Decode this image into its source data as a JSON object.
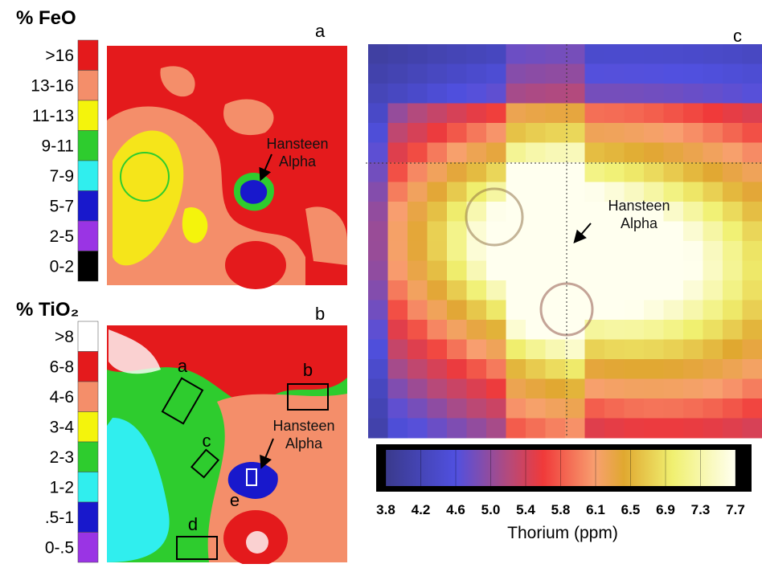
{
  "panels": [
    {
      "label": "a",
      "legend_title": "% FeO",
      "classes": [
        {
          "label": ">16",
          "color": "#e41a1c"
        },
        {
          "label": "13-16",
          "color": "#f48e6a"
        },
        {
          "label": "11-13",
          "color": "#f4f40c"
        },
        {
          "label": "9-11",
          "color": "#2ecc2e"
        },
        {
          "label": "7-9",
          "color": "#30eeee"
        },
        {
          "label": "5-7",
          "color": "#1818cc"
        },
        {
          "label": "2-5",
          "color": "#9a34e4"
        },
        {
          "label": "0-2",
          "color": "#000000"
        }
      ],
      "annotation": [
        "Hansteen",
        "Alpha"
      ]
    },
    {
      "label": "b",
      "legend_title": "% TiO₂",
      "classes": [
        {
          "label": ">8",
          "color": "#ffffff"
        },
        {
          "label": "6-8",
          "color": "#e41a1c"
        },
        {
          "label": "4-6",
          "color": "#f48e6a"
        },
        {
          "label": "3-4",
          "color": "#f4f40c"
        },
        {
          "label": "2-3",
          "color": "#2ecc2e"
        },
        {
          "label": "1-2",
          "color": "#30eeee"
        },
        {
          "label": ".5-1",
          "color": "#1818cc"
        },
        {
          "label": "0-.5",
          "color": "#9a34e4"
        }
      ],
      "annotation": [
        "Hansteen",
        "Alpha"
      ],
      "boxes": [
        "a",
        "b",
        "c",
        "d",
        "e"
      ]
    },
    {
      "label": "c",
      "annotation": [
        "Hansteen",
        "Alpha"
      ],
      "colorbar": {
        "label": "Thorium (ppm)",
        "ticks": [
          "3.8",
          "4.2",
          "4.6",
          "5.0",
          "5.4",
          "5.8",
          "6.1",
          "6.5",
          "6.9",
          "7.3",
          "7.7"
        ]
      }
    }
  ]
}
